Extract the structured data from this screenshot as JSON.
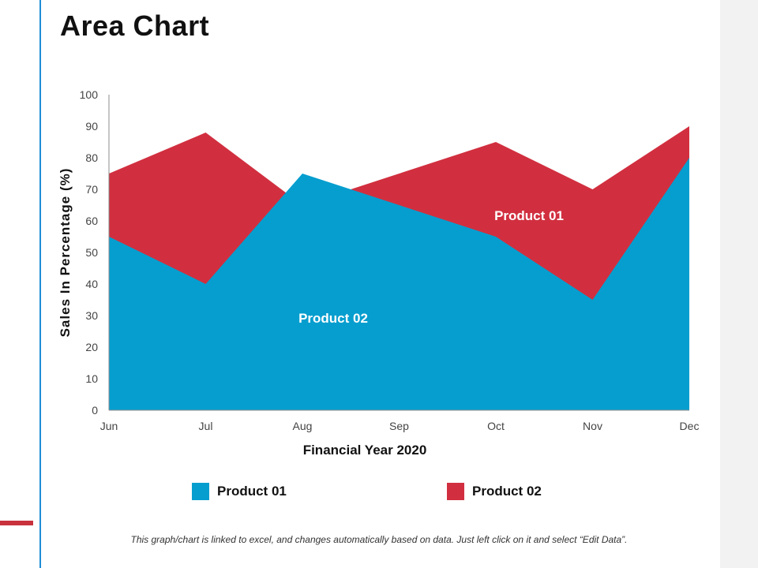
{
  "page": {
    "title": "Area Chart",
    "footnote": "This graph/chart is linked to excel, and changes automatically based on data. Just left click on it and select “Edit Data”."
  },
  "colors": {
    "product_01": "#069ecf",
    "product_02": "#d12f3f",
    "side_panel": "#f2f2f2",
    "accent_line": "#1f8dd6",
    "accent_bar": "#c8323c"
  },
  "chart_data": {
    "type": "area",
    "title": "Area Chart",
    "categories": [
      "Jun",
      "Jul",
      "Aug",
      "Sep",
      "Oct",
      "Nov",
      "Dec"
    ],
    "series": [
      {
        "name": "Product 01",
        "values": [
          55,
          40,
          75,
          65,
          55,
          35,
          80
        ]
      },
      {
        "name": "Product 02",
        "values": [
          75,
          88,
          65,
          75,
          85,
          70,
          90
        ]
      }
    ],
    "xlabel": "Financial Year 2020",
    "ylabel": "Sales In Percentage (%)",
    "ylim": [
      0,
      100
    ],
    "yticks": [
      0,
      10,
      20,
      30,
      40,
      50,
      60,
      70,
      80,
      90,
      100
    ],
    "annotations": [
      "Product 01",
      "Product 02"
    ],
    "legend": [
      "Product 01",
      "Product 02"
    ],
    "legend_position": "bottom",
    "grid": false
  }
}
